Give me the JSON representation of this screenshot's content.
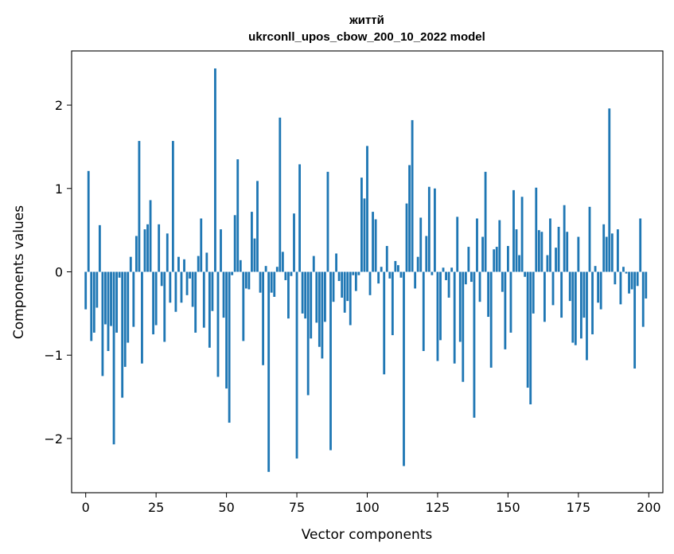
{
  "chart_data": {
    "type": "bar",
    "title": "життй",
    "subtitle": "ukrconll_upos_cbow_200_10_2022 model",
    "xlabel": "Vector components",
    "ylabel": "Components values",
    "xlim": [
      -5,
      205
    ],
    "ylim": [
      -2.65,
      2.65
    ],
    "xticks": [
      0,
      25,
      50,
      75,
      100,
      125,
      150,
      175,
      200
    ],
    "yticks": [
      -2,
      -1,
      0,
      1,
      2
    ],
    "ytick_labels": [
      "−2",
      "−1",
      "0",
      "1",
      "2"
    ],
    "grid": false,
    "color": "#1f77b4",
    "x": [
      0,
      1,
      2,
      3,
      4,
      5,
      6,
      7,
      8,
      9,
      10,
      11,
      12,
      13,
      14,
      15,
      16,
      17,
      18,
      19,
      20,
      21,
      22,
      23,
      24,
      25,
      26,
      27,
      28,
      29,
      30,
      31,
      32,
      33,
      34,
      35,
      36,
      37,
      38,
      39,
      40,
      41,
      42,
      43,
      44,
      45,
      46,
      47,
      48,
      49,
      50,
      51,
      52,
      53,
      54,
      55,
      56,
      57,
      58,
      59,
      60,
      61,
      62,
      63,
      64,
      65,
      66,
      67,
      68,
      69,
      70,
      71,
      72,
      73,
      74,
      75,
      76,
      77,
      78,
      79,
      80,
      81,
      82,
      83,
      84,
      85,
      86,
      87,
      88,
      89,
      90,
      91,
      92,
      93,
      94,
      95,
      96,
      97,
      98,
      99,
      100,
      101,
      102,
      103,
      104,
      105,
      106,
      107,
      108,
      109,
      110,
      111,
      112,
      113,
      114,
      115,
      116,
      117,
      118,
      119,
      120,
      121,
      122,
      123,
      124,
      125,
      126,
      127,
      128,
      129,
      130,
      131,
      132,
      133,
      134,
      135,
      136,
      137,
      138,
      139,
      140,
      141,
      142,
      143,
      144,
      145,
      146,
      147,
      148,
      149,
      150,
      151,
      152,
      153,
      154,
      155,
      156,
      157,
      158,
      159,
      160,
      161,
      162,
      163,
      164,
      165,
      166,
      167,
      168,
      169,
      170,
      171,
      172,
      173,
      174,
      175,
      176,
      177,
      178,
      179,
      180,
      181,
      182,
      183,
      184,
      185,
      186,
      187,
      188,
      189,
      190,
      191,
      192,
      193,
      194,
      195,
      196,
      197,
      198,
      199
    ],
    "values": [
      -0.45,
      1.21,
      -0.83,
      -0.73,
      -0.43,
      0.56,
      -1.25,
      -0.63,
      -0.95,
      -0.65,
      -2.07,
      -0.73,
      -0.07,
      -1.51,
      -1.14,
      -0.85,
      0.18,
      -0.66,
      0.43,
      1.57,
      -1.1,
      0.51,
      0.57,
      0.86,
      -0.75,
      -0.64,
      0.57,
      -0.17,
      -0.84,
      0.46,
      -0.37,
      1.57,
      -0.48,
      0.18,
      -0.37,
      0.15,
      -0.28,
      -0.08,
      -0.42,
      -0.73,
      0.19,
      0.64,
      -0.67,
      0.23,
      -0.91,
      -0.47,
      2.44,
      -1.26,
      0.51,
      -0.55,
      -1.4,
      -1.81,
      -0.04,
      0.68,
      1.35,
      0.14,
      -0.83,
      -0.2,
      -0.21,
      0.72,
      0.4,
      1.09,
      -0.25,
      -1.12,
      0.07,
      -2.4,
      -0.25,
      -0.3,
      0.06,
      1.85,
      0.24,
      -0.1,
      -0.56,
      -0.05,
      0.7,
      -2.24,
      1.29,
      -0.5,
      -0.56,
      -1.48,
      -0.8,
      0.19,
      -0.61,
      -0.9,
      -1.04,
      -0.6,
      1.2,
      -2.14,
      -0.36,
      0.22,
      -0.11,
      -0.31,
      -0.49,
      -0.35,
      -0.64,
      -0.04,
      -0.23,
      -0.04,
      1.13,
      0.88,
      1.51,
      -0.28,
      0.72,
      0.63,
      -0.14,
      0.06,
      -1.23,
      0.31,
      -0.08,
      -0.76,
      0.13,
      0.08,
      -0.07,
      -2.33,
      0.82,
      1.28,
      1.82,
      -0.2,
      0.18,
      0.65,
      -0.95,
      0.43,
      1.02,
      -0.04,
      1.0,
      -1.07,
      -0.82,
      0.05,
      -0.1,
      -0.31,
      0.05,
      -1.1,
      0.66,
      -0.84,
      -1.32,
      -0.15,
      0.3,
      -0.12,
      -1.75,
      0.64,
      -0.36,
      0.42,
      1.2,
      -0.54,
      -1.15,
      0.27,
      0.3,
      0.62,
      -0.24,
      -0.93,
      0.31,
      -0.73,
      0.98,
      0.51,
      0.2,
      0.9,
      -0.06,
      -1.39,
      -1.59,
      -0.5,
      1.01,
      0.5,
      0.48,
      -0.6,
      0.2,
      0.64,
      -0.4,
      0.29,
      0.54,
      -0.55,
      0.8,
      0.48,
      -0.35,
      -0.85,
      -0.88,
      0.42,
      -0.8,
      -0.55,
      -1.06,
      0.78,
      -0.75,
      0.07,
      -0.37,
      -0.45,
      0.57,
      0.42,
      1.96,
      0.46,
      -0.15,
      0.51,
      -0.39,
      0.06,
      -0.02,
      -0.26,
      -0.21,
      -1.16,
      -0.17,
      0.64,
      -0.66,
      -0.32
    ]
  }
}
